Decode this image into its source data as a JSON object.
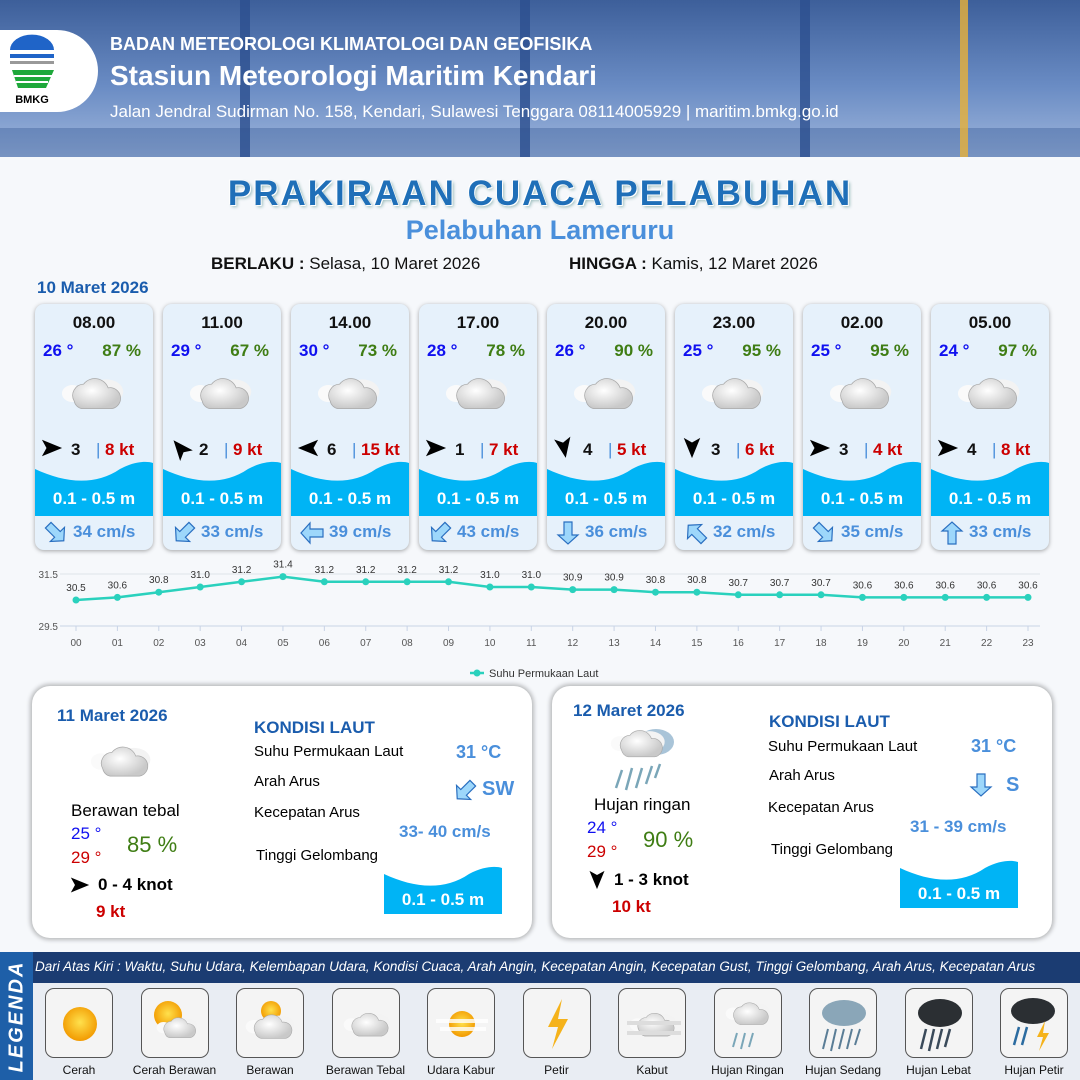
{
  "header": {
    "agency": "BADAN METEOROLOGI KLIMATOLOGI DAN GEOFISIKA",
    "station": "Stasiun Meteorologi Maritim Kendari",
    "address": "Jalan Jendral Sudirman No. 158, Kendari, Sulawesi Tenggara  08114005929 | maritim.bmkg.go.id",
    "logo_text": "BMKG"
  },
  "title": "PRAKIRAAN CUACA PELABUHAN",
  "subtitle": "Pelabuhan Lameruru",
  "validity": {
    "from_label": "BERLAKU :",
    "from": "Selasa, 10 Maret 2026",
    "to_label": "HINGGA :",
    "to": "Kamis, 12 Maret 2026"
  },
  "day1": {
    "date": "10 Maret 2026",
    "cards": [
      {
        "time": "08.00",
        "temp": "26 °",
        "hum": "87 %",
        "wind_dir_deg": 0,
        "wind": "3",
        "gust": "8 kt",
        "wave": "0.1 - 0.5 m",
        "current_dir_deg": 45,
        "current": "34 cm/s"
      },
      {
        "time": "11.00",
        "temp": "29 °",
        "hum": "67 %",
        "wind_dir_deg": -130,
        "wind": "2",
        "gust": "9 kt",
        "wave": "0.1 - 0.5 m",
        "current_dir_deg": 135,
        "current": "33 cm/s"
      },
      {
        "time": "14.00",
        "temp": "30 °",
        "hum": "73 %",
        "wind_dir_deg": 180,
        "wind": "6",
        "gust": "15 kt",
        "wave": "0.1 - 0.5 m",
        "current_dir_deg": 180,
        "current": "39 cm/s"
      },
      {
        "time": "17.00",
        "temp": "28 °",
        "hum": "78 %",
        "wind_dir_deg": 0,
        "wind": "1",
        "gust": "7 kt",
        "wave": "0.1 - 0.5 m",
        "current_dir_deg": 135,
        "current": "43 cm/s"
      },
      {
        "time": "20.00",
        "temp": "26 °",
        "hum": "90 %",
        "wind_dir_deg": 80,
        "wind": "4",
        "gust": "5 kt",
        "wave": "0.1 - 0.5 m",
        "current_dir_deg": 90,
        "current": "36 cm/s"
      },
      {
        "time": "23.00",
        "temp": "25 °",
        "hum": "95 %",
        "wind_dir_deg": 90,
        "wind": "3",
        "gust": "6 kt",
        "wave": "0.1 - 0.5 m",
        "current_dir_deg": -135,
        "current": "32 cm/s"
      },
      {
        "time": "02.00",
        "temp": "25 °",
        "hum": "95 %",
        "wind_dir_deg": 0,
        "wind": "3",
        "gust": "4 kt",
        "wave": "0.1 - 0.5 m",
        "current_dir_deg": 45,
        "current": "35 cm/s"
      },
      {
        "time": "05.00",
        "temp": "24 °",
        "hum": "97 %",
        "wind_dir_deg": 0,
        "wind": "4",
        "gust": "8 kt",
        "wave": "0.1 - 0.5 m",
        "current_dir_deg": -90,
        "current": "33 cm/s"
      }
    ]
  },
  "chart_data": {
    "type": "line",
    "categories": [
      "00",
      "01",
      "02",
      "03",
      "04",
      "05",
      "06",
      "07",
      "08",
      "09",
      "10",
      "11",
      "12",
      "13",
      "14",
      "15",
      "16",
      "17",
      "18",
      "19",
      "20",
      "21",
      "22",
      "23"
    ],
    "series": [
      {
        "name": "Suhu Permukaan Laut",
        "values": [
          30.5,
          30.6,
          30.8,
          31.0,
          31.2,
          31.4,
          31.2,
          31.2,
          31.2,
          31.2,
          31.0,
          31.0,
          30.9,
          30.9,
          30.8,
          30.8,
          30.7,
          30.7,
          30.7,
          30.6,
          30.6,
          30.6,
          30.6,
          30.6
        ]
      }
    ],
    "yticks": [
      "29.5",
      "31.5"
    ],
    "ylim": [
      29.5,
      31.5
    ],
    "grid": true,
    "legend": "bottom",
    "color": "#2ad1bd"
  },
  "day2": {
    "date": "11 Maret 2026",
    "weather": "Berawan tebal",
    "tmin": "25 °",
    "tmax": "29 °",
    "hum": "85 %",
    "wind_dir_deg": 0,
    "wind": "0  - 4 knot",
    "gust": "9 kt",
    "sea_title": "KONDISI LAUT",
    "sst_label": "Suhu Permukaan Laut",
    "sst": "31 °C",
    "cur_dir_label": "Arah Arus",
    "cur_dir": "SW",
    "cur_dir_deg": 135,
    "cur_spd_label": "Kecepatan Arus",
    "cur_spd": "33- 40 cm/s",
    "wave_label": "Tinggi Gelombang",
    "wave": "0.1 - 0.5 m"
  },
  "day3": {
    "date": "12 Maret 2026",
    "weather": "Hujan ringan",
    "tmin": "24 °",
    "tmax": "29 °",
    "hum": "90 %",
    "wind_dir_deg": 90,
    "wind": "1  - 3 knot",
    "gust": "10 kt",
    "sea_title": "KONDISI LAUT",
    "sst_label": "Suhu Permukaan Laut",
    "sst": "31 °C",
    "cur_dir_label": "Arah Arus",
    "cur_dir": "S",
    "cur_dir_deg": 90,
    "cur_spd_label": "Kecepatan Arus",
    "cur_spd": "31 - 39 cm/s",
    "wave_label": "Tinggi Gelombang",
    "wave": "0.1 - 0.5 m"
  },
  "legend": {
    "title": "LEGENDA",
    "description": "Dari Atas Kiri : Waktu, Suhu Udara, Kelembapan Udara, Kondisi Cuaca, Arah Angin, Kecepatan Angin, Kecepatan Gust, Tinggi Gelombang, Arah Arus, Kecepatan Arus",
    "items": [
      {
        "label": "Cerah",
        "icon": "sun"
      },
      {
        "label": "Cerah Berawan",
        "icon": "sun-cloud"
      },
      {
        "label": "Berawan",
        "icon": "cloudy"
      },
      {
        "label": "Berawan Tebal",
        "icon": "overcast"
      },
      {
        "label": "Udara Kabur",
        "icon": "haze"
      },
      {
        "label": "Petir",
        "icon": "lightning"
      },
      {
        "label": "Kabut",
        "icon": "fog"
      },
      {
        "label": "Hujan Ringan",
        "icon": "light-rain"
      },
      {
        "label": "Hujan Sedang",
        "icon": "moderate-rain"
      },
      {
        "label": "Hujan Lebat",
        "icon": "heavy-rain"
      },
      {
        "label": "Hujan Petir",
        "icon": "thunderstorm"
      }
    ]
  },
  "colors": {
    "title": "#1f6fb8",
    "wave": "#00b4f5",
    "temp": "#1010f0",
    "humidity": "#3f7d14",
    "gust": "#cc0000",
    "current": "#4a8fdb"
  }
}
